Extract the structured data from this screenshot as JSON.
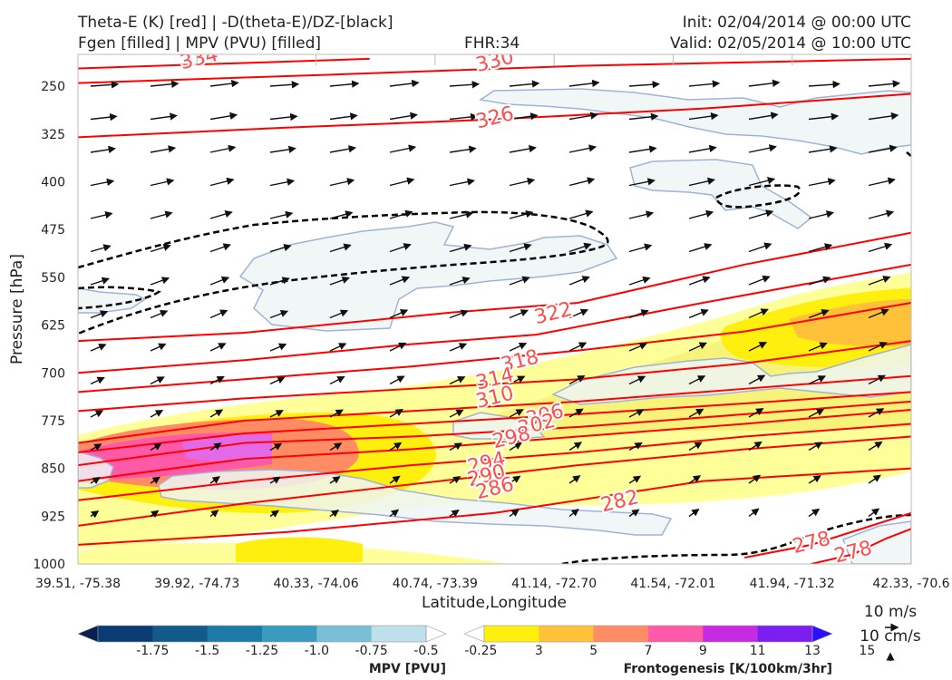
{
  "header": {
    "line1_left": "Theta-E (K) [red] | -D(theta-E)/DZ-[black]",
    "line2_left": "Fgen [filled] | MPV (PVU) [filled]",
    "fhr": "FHR:34",
    "init": "Init: 02/04/2014 @ 00:00 UTC",
    "valid": "Valid: 02/05/2014 @ 10:00 UTC"
  },
  "chart_data": {
    "type": "cross-section",
    "xlabel": "Latitude,Longitude",
    "ylabel": "Pressure [hPa]",
    "x_ticks": [
      "39.51, -75.38",
      "39.92, -74.73",
      "40.33, -74.06",
      "40.74, -73.39",
      "41.14, -72.70",
      "41.54, -72.01",
      "41.94, -71.32",
      "42.33, -70.6"
    ],
    "y_ticks": [
      250,
      325,
      400,
      475,
      550,
      625,
      700,
      775,
      850,
      925,
      1000
    ],
    "ylim": [
      200,
      1000
    ],
    "y_inverted": true,
    "theta_e_contours": [
      {
        "label": "334",
        "points": [
          [
            0.0,
            222
          ],
          [
            0.35,
            207
          ]
        ],
        "label_at": [
          0.145,
          205
        ]
      },
      {
        "label": "330",
        "points": [
          [
            0.0,
            245
          ],
          [
            0.3,
            232
          ],
          [
            0.6,
            218
          ],
          [
            1.0,
            207
          ]
        ],
        "label_at": [
          0.5,
          209
        ]
      },
      {
        "label": "326",
        "points": [
          [
            0.0,
            330
          ],
          [
            0.25,
            315
          ],
          [
            0.5,
            302
          ],
          [
            0.75,
            285
          ],
          [
            1.0,
            262
          ]
        ],
        "label_at": [
          0.5,
          298
        ]
      },
      {
        "label": "322",
        "points": [
          [
            0.0,
            650
          ],
          [
            0.2,
            637
          ],
          [
            0.45,
            605
          ],
          [
            0.6,
            590
          ],
          [
            0.8,
            530
          ],
          [
            1.0,
            480
          ]
        ],
        "label_at": [
          0.57,
          605
        ]
      },
      {
        "label": "318",
        "points": [
          [
            0.0,
            700
          ],
          [
            0.2,
            680
          ],
          [
            0.4,
            655
          ],
          [
            0.55,
            640
          ],
          [
            0.75,
            590
          ],
          [
            1.0,
            530
          ]
        ],
        "label_at": [
          0.53,
          680
        ]
      },
      {
        "label": "314",
        "points": [
          [
            0.0,
            730
          ],
          [
            0.2,
            710
          ],
          [
            0.4,
            690
          ],
          [
            0.6,
            665
          ],
          [
            0.8,
            635
          ],
          [
            1.0,
            590
          ]
        ],
        "label_at": [
          0.5,
          708
        ]
      },
      {
        "label": "310",
        "points": [
          [
            0.0,
            760
          ],
          [
            0.2,
            740
          ],
          [
            0.4,
            725
          ],
          [
            0.6,
            710
          ],
          [
            0.8,
            685
          ],
          [
            1.0,
            650
          ]
        ],
        "label_at": [
          0.5,
          737
        ]
      },
      {
        "label": "306",
        "points": [
          [
            0.0,
            810
          ],
          [
            0.2,
            775
          ],
          [
            0.4,
            760
          ],
          [
            0.6,
            745
          ],
          [
            0.8,
            725
          ],
          [
            1.0,
            705
          ]
        ],
        "label_at": [
          0.56,
          765
        ]
      },
      {
        "label": "302",
        "points": [
          [
            0.0,
            825
          ],
          [
            0.2,
            795
          ],
          [
            0.4,
            780
          ],
          [
            0.6,
            765
          ],
          [
            0.8,
            748
          ],
          [
            1.0,
            730
          ]
        ],
        "label_at": [
          0.55,
          780
        ]
      },
      {
        "label": "298",
        "points": [
          [
            0.0,
            845
          ],
          [
            0.2,
            810
          ],
          [
            0.4,
            800
          ],
          [
            0.6,
            785
          ],
          [
            0.8,
            765
          ],
          [
            1.0,
            745
          ]
        ],
        "label_at": [
          0.52,
          800
        ]
      },
      {
        "label": "294",
        "points": [
          [
            0.0,
            870
          ],
          [
            0.2,
            835
          ],
          [
            0.4,
            820
          ],
          [
            0.6,
            800
          ],
          [
            0.8,
            780
          ],
          [
            1.0,
            758
          ]
        ],
        "label_at": [
          0.49,
          840
        ]
      },
      {
        "label": "290",
        "points": [
          [
            0.0,
            900
          ],
          [
            0.2,
            870
          ],
          [
            0.4,
            845
          ],
          [
            0.6,
            825
          ],
          [
            0.8,
            800
          ],
          [
            1.0,
            780
          ]
        ],
        "label_at": [
          0.49,
          860
        ]
      },
      {
        "label": "286",
        "points": [
          [
            0.0,
            940
          ],
          [
            0.2,
            905
          ],
          [
            0.4,
            875
          ],
          [
            0.6,
            845
          ],
          [
            0.8,
            820
          ],
          [
            1.0,
            800
          ]
        ],
        "label_at": [
          0.5,
          880
        ]
      },
      {
        "label": "282",
        "points": [
          [
            0.0,
            970
          ],
          [
            0.25,
            950
          ],
          [
            0.5,
            920
          ],
          [
            0.75,
            870
          ],
          [
            1.0,
            850
          ]
        ],
        "label_at": [
          0.65,
          900
        ]
      },
      {
        "label": "278",
        "points": [
          [
            0.8,
            990
          ],
          [
            0.88,
            970
          ],
          [
            0.94,
            945
          ],
          [
            1.0,
            920
          ]
        ],
        "label_at": [
          0.88,
          965
        ]
      },
      {
        "label": "278",
        "points": [
          [
            0.88,
            1000
          ],
          [
            0.93,
            985
          ],
          [
            0.97,
            960
          ],
          [
            1.0,
            945
          ]
        ],
        "label_at": [
          0.93,
          980
        ]
      }
    ],
    "theta_e_label_color": "#ff4d4d",
    "theta_e_line_color": "#ff0000",
    "stability_contour_color": "#000000",
    "wind_vector_color": "#000000",
    "mpv_colorbar": {
      "title": "MPV [PVU]",
      "tick_labels": [
        "-1.75",
        "-1.5",
        "-1.25",
        "-1.0",
        "-0.75",
        "-0.5",
        "-0.25"
      ],
      "colors": [
        "#08204f",
        "#0a3b73",
        "#125a8c",
        "#1c7aa6",
        "#3b9ac0",
        "#7bbfd6",
        "#bde0ea",
        "#ffffff"
      ]
    },
    "fgen_colorbar": {
      "title": "Frontogenesis [K/100km/3hr]",
      "tick_labels": [
        "3",
        "5",
        "7",
        "9",
        "11",
        "13",
        "15"
      ],
      "colors": [
        "#ffffff",
        "#ffef0f",
        "#ffc13a",
        "#ff8c65",
        "#ff5aa8",
        "#c52bdf",
        "#7c1eef",
        "#2a10ff"
      ]
    },
    "reference_vectors": {
      "horizontal": "10 m/s",
      "vertical": "10 cm/s"
    },
    "colors": {
      "fgen_light": "#ffff99",
      "fgen_yellow": "#ffef0f",
      "fgen_orange": "#ffc13a",
      "fgen_salmon": "#ff8c65",
      "fgen_pink": "#ff5aa8",
      "fgen_magenta": "#e36ae6",
      "mpv_fill": "#eef6f6",
      "mpv_edge": "#9fb3d6"
    }
  }
}
